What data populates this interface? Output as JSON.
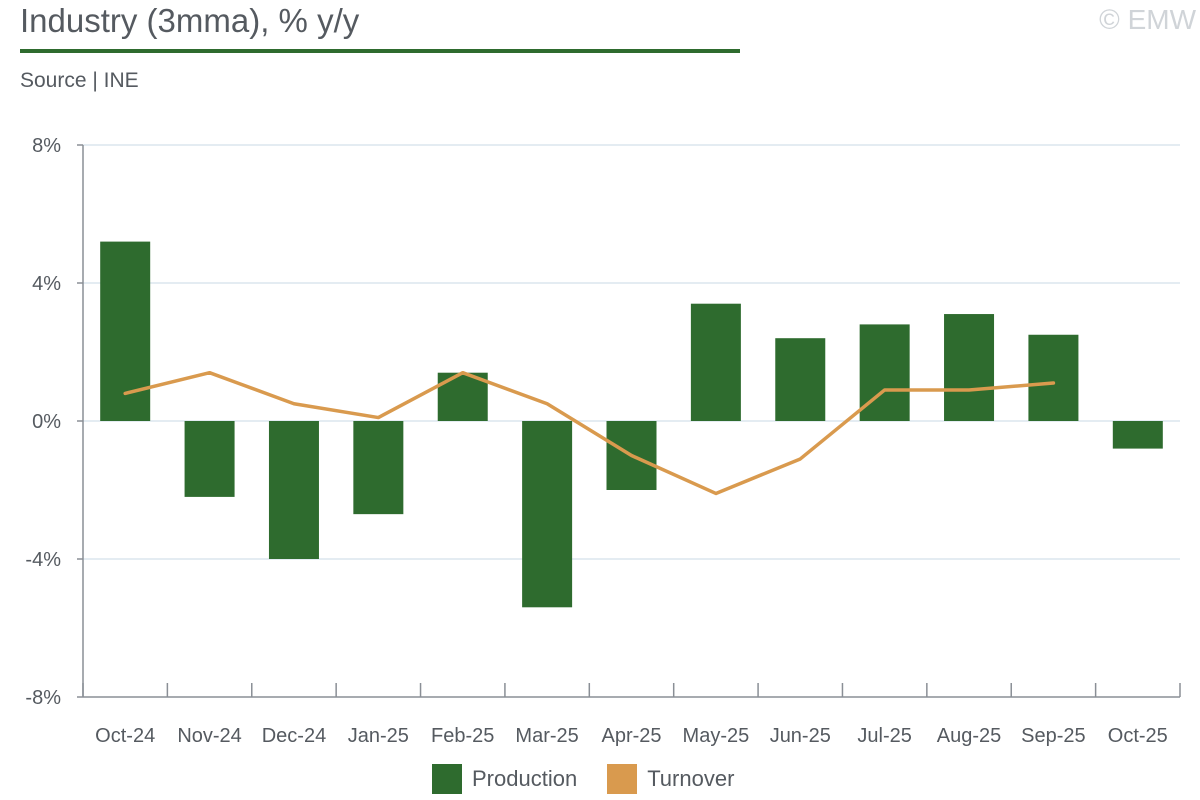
{
  "header": {
    "title": "Industry (3mma), % y/y",
    "source": "Source | INE",
    "copyright": "© EMW"
  },
  "colors": {
    "production": "#2e6b2e",
    "turnover": "#d99a4e",
    "grid": "#dce6ee",
    "axis": "#8a8f96"
  },
  "chart_data": {
    "type": "bar",
    "title": "Industry (3mma), % y/y",
    "xlabel": "",
    "ylabel": "",
    "ylim": [
      -8,
      8
    ],
    "yticks": [
      "8%",
      "4%",
      "0%",
      "-4%",
      "-8%"
    ],
    "ytick_values": [
      8,
      4,
      0,
      -4,
      -8
    ],
    "grid": true,
    "legend_position": "bottom",
    "categories": [
      "Oct-24",
      "Nov-24",
      "Dec-24",
      "Jan-25",
      "Feb-25",
      "Mar-25",
      "Apr-25",
      "May-25",
      "Jun-25",
      "Jul-25",
      "Aug-25",
      "Sep-25",
      "Oct-25"
    ],
    "series": [
      {
        "name": "Production",
        "type": "bar",
        "values": [
          5.2,
          -2.2,
          -4.0,
          -2.7,
          1.4,
          -5.4,
          -2.0,
          3.4,
          2.4,
          2.8,
          3.1,
          2.5,
          -0.8
        ]
      },
      {
        "name": "Turnover",
        "type": "line",
        "values": [
          0.8,
          1.4,
          0.5,
          0.1,
          1.4,
          0.5,
          -1.0,
          -2.1,
          -1.1,
          0.9,
          0.9,
          1.1,
          null
        ]
      }
    ]
  }
}
